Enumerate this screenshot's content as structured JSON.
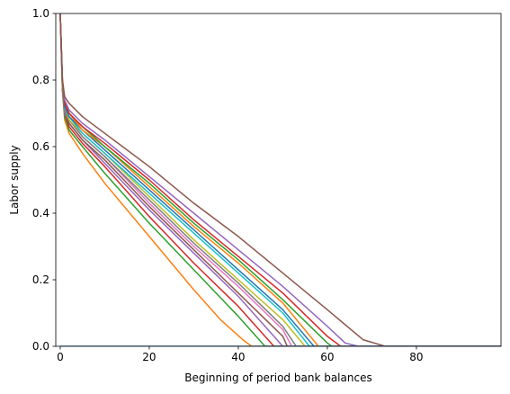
{
  "chart_data": {
    "type": "line",
    "title": "",
    "xlabel": "Beginning of period bank balances",
    "ylabel": "Labor supply",
    "xlim": [
      -1,
      99
    ],
    "ylim": [
      0,
      1.0
    ],
    "xticks": [
      0,
      20,
      40,
      60,
      80
    ],
    "yticks": [
      0.0,
      0.2,
      0.4,
      0.6,
      0.8,
      1.0
    ],
    "ytick_labels": [
      "0.0",
      "0.2",
      "0.4",
      "0.6",
      "0.8",
      "1.0"
    ],
    "grid": false,
    "legend": "none",
    "series": [
      {
        "color": "#ff7f0e",
        "values": [
          [
            0,
            1.0
          ],
          [
            0.5,
            0.77
          ],
          [
            1,
            0.68
          ],
          [
            2,
            0.64
          ],
          [
            5,
            0.58
          ],
          [
            10,
            0.49
          ],
          [
            20,
            0.33
          ],
          [
            30,
            0.17
          ],
          [
            36,
            0.08
          ],
          [
            41,
            0.02
          ],
          [
            43,
            0.0
          ],
          [
            99,
            0.0
          ]
        ]
      },
      {
        "color": "#2ca02c",
        "values": [
          [
            0,
            1.0
          ],
          [
            0.5,
            0.77
          ],
          [
            1,
            0.69
          ],
          [
            2,
            0.65
          ],
          [
            5,
            0.6
          ],
          [
            10,
            0.52
          ],
          [
            20,
            0.37
          ],
          [
            30,
            0.23
          ],
          [
            40,
            0.09
          ],
          [
            46,
            0.0
          ],
          [
            99,
            0.0
          ]
        ]
      },
      {
        "color": "#d62728",
        "values": [
          [
            0,
            1.0
          ],
          [
            0.5,
            0.77
          ],
          [
            1,
            0.7
          ],
          [
            2,
            0.66
          ],
          [
            5,
            0.61
          ],
          [
            10,
            0.54
          ],
          [
            20,
            0.39
          ],
          [
            30,
            0.25
          ],
          [
            40,
            0.12
          ],
          [
            48,
            0.0
          ],
          [
            99,
            0.0
          ]
        ]
      },
      {
        "color": "#9467bd",
        "values": [
          [
            0,
            1.0
          ],
          [
            0.5,
            0.78
          ],
          [
            1,
            0.7
          ],
          [
            2,
            0.67
          ],
          [
            5,
            0.62
          ],
          [
            10,
            0.55
          ],
          [
            20,
            0.41
          ],
          [
            30,
            0.28
          ],
          [
            40,
            0.15
          ],
          [
            48,
            0.03
          ],
          [
            50,
            0.0
          ],
          [
            99,
            0.0
          ]
        ]
      },
      {
        "color": "#8c564b",
        "values": [
          [
            0,
            1.0
          ],
          [
            0.5,
            0.78
          ],
          [
            1,
            0.71
          ],
          [
            2,
            0.67
          ],
          [
            5,
            0.62
          ],
          [
            10,
            0.56
          ],
          [
            20,
            0.42
          ],
          [
            30,
            0.29
          ],
          [
            40,
            0.16
          ],
          [
            50,
            0.03
          ],
          [
            51,
            0.0
          ],
          [
            99,
            0.0
          ]
        ]
      },
      {
        "color": "#e377c2",
        "values": [
          [
            0,
            1.0
          ],
          [
            0.5,
            0.78
          ],
          [
            1,
            0.71
          ],
          [
            2,
            0.68
          ],
          [
            5,
            0.63
          ],
          [
            10,
            0.57
          ],
          [
            20,
            0.43
          ],
          [
            30,
            0.3
          ],
          [
            40,
            0.18
          ],
          [
            50,
            0.05
          ],
          [
            52,
            0.0
          ],
          [
            99,
            0.0
          ]
        ]
      },
      {
        "color": "#7f7f7f",
        "values": [
          [
            0,
            1.0
          ],
          [
            0.5,
            0.78
          ],
          [
            1,
            0.71
          ],
          [
            2,
            0.68
          ],
          [
            5,
            0.63
          ],
          [
            10,
            0.57
          ],
          [
            20,
            0.44
          ],
          [
            30,
            0.31
          ],
          [
            40,
            0.19
          ],
          [
            50,
            0.06
          ],
          [
            53,
            0.0
          ],
          [
            99,
            0.0
          ]
        ]
      },
      {
        "color": "#bcbd22",
        "values": [
          [
            0,
            1.0
          ],
          [
            0.5,
            0.78
          ],
          [
            1,
            0.72
          ],
          [
            2,
            0.68
          ],
          [
            5,
            0.64
          ],
          [
            10,
            0.58
          ],
          [
            20,
            0.45
          ],
          [
            30,
            0.32
          ],
          [
            40,
            0.2
          ],
          [
            50,
            0.08
          ],
          [
            55,
            0.0
          ],
          [
            99,
            0.0
          ]
        ]
      },
      {
        "color": "#17becf",
        "values": [
          [
            0,
            1.0
          ],
          [
            0.5,
            0.79
          ],
          [
            1,
            0.72
          ],
          [
            2,
            0.69
          ],
          [
            5,
            0.64
          ],
          [
            10,
            0.58
          ],
          [
            20,
            0.46
          ],
          [
            30,
            0.34
          ],
          [
            40,
            0.22
          ],
          [
            50,
            0.1
          ],
          [
            56,
            0.0
          ],
          [
            99,
            0.0
          ]
        ]
      },
      {
        "color": "#1f77b4",
        "values": [
          [
            0,
            1.0
          ],
          [
            0.5,
            0.79
          ],
          [
            1,
            0.72
          ],
          [
            2,
            0.69
          ],
          [
            5,
            0.65
          ],
          [
            10,
            0.59
          ],
          [
            20,
            0.47
          ],
          [
            30,
            0.35
          ],
          [
            40,
            0.23
          ],
          [
            50,
            0.11
          ],
          [
            57,
            0.0
          ],
          [
            99,
            0.0
          ]
        ]
      },
      {
        "color": "#ff7f0e",
        "values": [
          [
            0,
            1.0
          ],
          [
            0.5,
            0.79
          ],
          [
            1,
            0.73
          ],
          [
            2,
            0.7
          ],
          [
            5,
            0.65
          ],
          [
            10,
            0.6
          ],
          [
            20,
            0.48
          ],
          [
            30,
            0.36
          ],
          [
            40,
            0.25
          ],
          [
            50,
            0.13
          ],
          [
            58,
            0.0
          ],
          [
            99,
            0.0
          ]
        ]
      },
      {
        "color": "#2ca02c",
        "values": [
          [
            0,
            1.0
          ],
          [
            0.5,
            0.79
          ],
          [
            1,
            0.73
          ],
          [
            2,
            0.7
          ],
          [
            5,
            0.66
          ],
          [
            10,
            0.6
          ],
          [
            20,
            0.49
          ],
          [
            30,
            0.37
          ],
          [
            40,
            0.26
          ],
          [
            50,
            0.14
          ],
          [
            60,
            0.01
          ],
          [
            61,
            0.0
          ],
          [
            99,
            0.0
          ]
        ]
      },
      {
        "color": "#d62728",
        "values": [
          [
            0,
            1.0
          ],
          [
            0.5,
            0.8
          ],
          [
            1,
            0.73
          ],
          [
            2,
            0.7
          ],
          [
            5,
            0.66
          ],
          [
            10,
            0.61
          ],
          [
            20,
            0.5
          ],
          [
            30,
            0.38
          ],
          [
            40,
            0.27
          ],
          [
            50,
            0.16
          ],
          [
            60,
            0.03
          ],
          [
            63,
            0.0
          ],
          [
            99,
            0.0
          ]
        ]
      },
      {
        "color": "#9467bd",
        "values": [
          [
            0,
            1.0
          ],
          [
            0.5,
            0.8
          ],
          [
            1,
            0.74
          ],
          [
            2,
            0.71
          ],
          [
            5,
            0.67
          ],
          [
            10,
            0.62
          ],
          [
            20,
            0.51
          ],
          [
            30,
            0.4
          ],
          [
            40,
            0.29
          ],
          [
            50,
            0.18
          ],
          [
            60,
            0.06
          ],
          [
            64,
            0.01
          ],
          [
            67,
            0.0
          ],
          [
            99,
            0.0
          ]
        ]
      },
      {
        "color": "#8c564b",
        "values": [
          [
            0,
            1.0
          ],
          [
            0.5,
            0.8
          ],
          [
            1,
            0.75
          ],
          [
            2,
            0.73
          ],
          [
            5,
            0.69
          ],
          [
            10,
            0.64
          ],
          [
            20,
            0.54
          ],
          [
            30,
            0.43
          ],
          [
            40,
            0.33
          ],
          [
            50,
            0.22
          ],
          [
            60,
            0.11
          ],
          [
            68,
            0.02
          ],
          [
            73,
            0.0
          ],
          [
            99,
            0.0
          ]
        ]
      },
      {
        "color": "#1f77b4",
        "values": [
          [
            0,
            0.0
          ],
          [
            99,
            0.0
          ]
        ]
      }
    ]
  }
}
